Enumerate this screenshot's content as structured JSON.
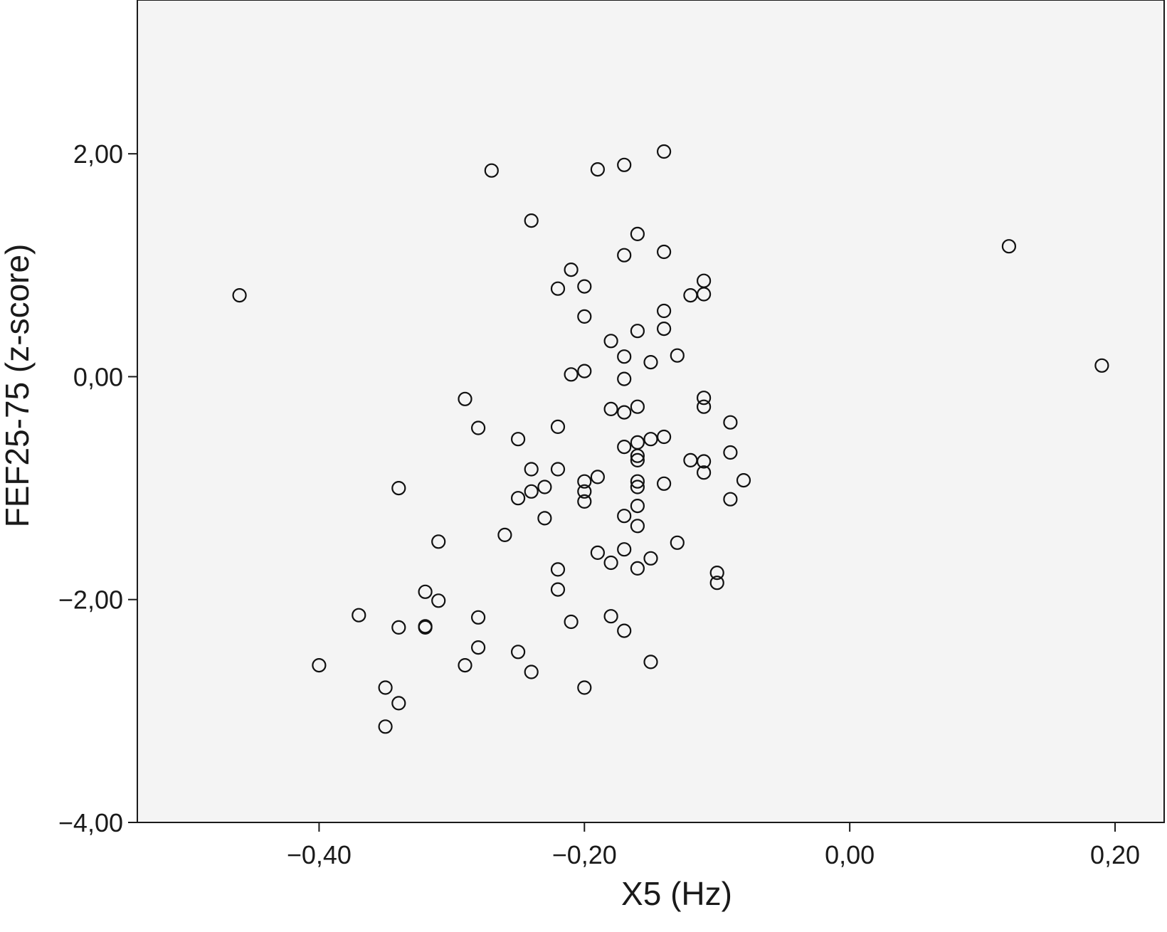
{
  "chart_data": {
    "type": "scatter",
    "title": "",
    "xlabel": "X5 (Hz)",
    "ylabel": "FEF25-75 (z-score)",
    "xlim": [
      -0.537,
      0.237
    ],
    "ylim": [
      -4.0,
      3.38
    ],
    "x_ticks": [
      -0.4,
      -0.2,
      0.0,
      0.2
    ],
    "x_tick_labels": [
      "−0,40",
      "−0,20",
      "0,00",
      "0,20"
    ],
    "y_ticks": [
      -4.0,
      -2.0,
      0.0,
      2.0
    ],
    "y_tick_labels": [
      "−4,00",
      "−2,00",
      "0,00",
      "2,00"
    ],
    "grid": false,
    "legend": "none",
    "marker": "open-circle",
    "colors": {
      "plot_background": "#f4f4f4",
      "marker_edge": "#111111",
      "axis": "#1a1a1a"
    },
    "points": [
      [
        -0.46,
        0.73
      ],
      [
        -0.4,
        -2.59
      ],
      [
        -0.37,
        -2.14
      ],
      [
        -0.35,
        -2.79
      ],
      [
        -0.35,
        -3.14
      ],
      [
        -0.34,
        -1.0
      ],
      [
        -0.34,
        -2.25
      ],
      [
        -0.34,
        -2.93
      ],
      [
        -0.32,
        -1.93
      ],
      [
        -0.32,
        -2.24
      ],
      [
        -0.32,
        -2.25
      ],
      [
        -0.31,
        -1.48
      ],
      [
        -0.31,
        -2.01
      ],
      [
        -0.29,
        -0.2
      ],
      [
        -0.29,
        -2.59
      ],
      [
        -0.28,
        -0.46
      ],
      [
        -0.28,
        -2.16
      ],
      [
        -0.28,
        -2.43
      ],
      [
        -0.27,
        1.85
      ],
      [
        -0.26,
        -1.42
      ],
      [
        -0.25,
        -0.56
      ],
      [
        -0.25,
        -1.09
      ],
      [
        -0.25,
        -2.47
      ],
      [
        -0.24,
        1.4
      ],
      [
        -0.24,
        -0.83
      ],
      [
        -0.24,
        -1.03
      ],
      [
        -0.24,
        -2.65
      ],
      [
        -0.23,
        -0.99
      ],
      [
        -0.23,
        -1.27
      ],
      [
        -0.22,
        0.79
      ],
      [
        -0.22,
        -0.45
      ],
      [
        -0.22,
        -0.83
      ],
      [
        -0.22,
        -1.73
      ],
      [
        -0.22,
        -1.91
      ],
      [
        -0.21,
        0.96
      ],
      [
        -0.21,
        0.02
      ],
      [
        -0.21,
        -2.2
      ],
      [
        -0.2,
        0.81
      ],
      [
        -0.2,
        0.54
      ],
      [
        -0.2,
        0.05
      ],
      [
        -0.2,
        -0.94
      ],
      [
        -0.2,
        -1.03
      ],
      [
        -0.2,
        -1.12
      ],
      [
        -0.2,
        -2.79
      ],
      [
        -0.19,
        1.86
      ],
      [
        -0.19,
        -0.9
      ],
      [
        -0.19,
        -1.58
      ],
      [
        -0.18,
        0.32
      ],
      [
        -0.18,
        -0.29
      ],
      [
        -0.18,
        -1.67
      ],
      [
        -0.18,
        -2.15
      ],
      [
        -0.17,
        1.9
      ],
      [
        -0.17,
        1.09
      ],
      [
        -0.17,
        0.18
      ],
      [
        -0.17,
        -0.02
      ],
      [
        -0.17,
        -0.32
      ],
      [
        -0.17,
        -0.63
      ],
      [
        -0.17,
        -1.25
      ],
      [
        -0.17,
        -1.55
      ],
      [
        -0.17,
        -2.28
      ],
      [
        -0.16,
        1.28
      ],
      [
        -0.16,
        0.41
      ],
      [
        -0.16,
        -0.27
      ],
      [
        -0.16,
        -0.59
      ],
      [
        -0.16,
        -0.71
      ],
      [
        -0.16,
        -0.75
      ],
      [
        -0.16,
        -0.94
      ],
      [
        -0.16,
        -0.99
      ],
      [
        -0.16,
        -1.16
      ],
      [
        -0.16,
        -1.34
      ],
      [
        -0.16,
        -1.72
      ],
      [
        -0.15,
        0.13
      ],
      [
        -0.15,
        -0.56
      ],
      [
        -0.15,
        -1.63
      ],
      [
        -0.15,
        -2.56
      ],
      [
        -0.14,
        2.02
      ],
      [
        -0.14,
        1.12
      ],
      [
        -0.14,
        0.59
      ],
      [
        -0.14,
        0.43
      ],
      [
        -0.14,
        -0.54
      ],
      [
        -0.14,
        -0.96
      ],
      [
        -0.13,
        0.19
      ],
      [
        -0.13,
        -1.49
      ],
      [
        -0.12,
        0.73
      ],
      [
        -0.12,
        -0.75
      ],
      [
        -0.11,
        0.86
      ],
      [
        -0.11,
        0.74
      ],
      [
        -0.11,
        -0.19
      ],
      [
        -0.11,
        -0.27
      ],
      [
        -0.11,
        -0.76
      ],
      [
        -0.11,
        -0.86
      ],
      [
        -0.1,
        -1.76
      ],
      [
        -0.1,
        -1.85
      ],
      [
        -0.09,
        -0.41
      ],
      [
        -0.09,
        -0.68
      ],
      [
        -0.09,
        -1.1
      ],
      [
        -0.08,
        -0.93
      ],
      [
        0.12,
        1.17
      ],
      [
        0.19,
        0.1
      ]
    ]
  }
}
